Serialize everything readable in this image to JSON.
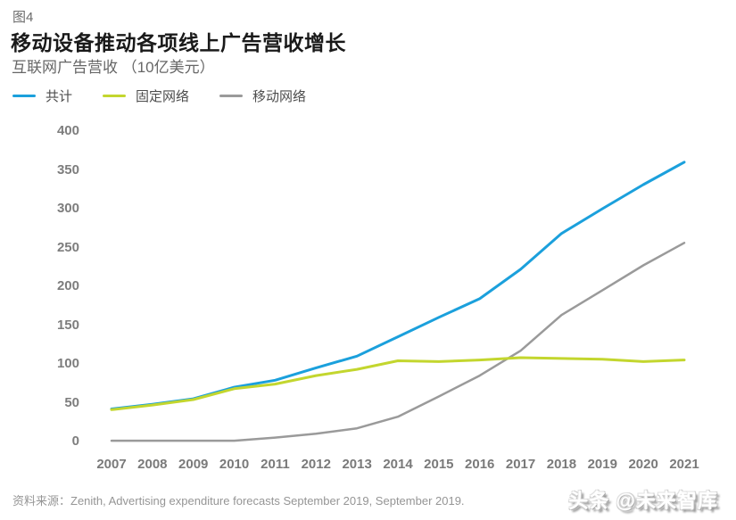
{
  "figure": {
    "tag": "图4",
    "title": "移动设备推动各项线上广告营收增长",
    "subtitle": "互联网广告营收 （10亿美元）",
    "source": "资料来源：Zenith, Advertising expenditure forecasts September 2019, September 2019.",
    "watermark": "头条 @未来智库"
  },
  "chart_data": {
    "type": "line",
    "title": "移动设备推动各项线上广告营收增长",
    "subtitle": "互联网广告营收 （10亿美元）",
    "categories": [
      2007,
      2008,
      2009,
      2010,
      2011,
      2012,
      2013,
      2014,
      2015,
      2016,
      2017,
      2018,
      2019,
      2020,
      2021
    ],
    "series": [
      {
        "id": "total",
        "name": "共计",
        "color": "#1BA0DC",
        "values": [
          42,
          48,
          55,
          70,
          79,
          95,
          110,
          135,
          160,
          184,
          222,
          268,
          300,
          331,
          360
        ]
      },
      {
        "id": "fixed",
        "name": "固定网络",
        "color": "#C3D62E",
        "values": [
          41,
          47,
          54,
          68,
          74,
          85,
          93,
          104,
          103,
          105,
          108,
          107,
          106,
          103,
          105
        ]
      },
      {
        "id": "mobile",
        "name": "移动网络",
        "color": "#9A9A9A",
        "values": [
          1,
          1,
          1,
          1,
          5,
          10,
          17,
          32,
          58,
          85,
          117,
          163,
          195,
          227,
          256
        ]
      }
    ],
    "yticks": [
      0,
      50,
      100,
      150,
      200,
      250,
      300,
      350,
      400
    ],
    "ylim": [
      0,
      400
    ],
    "grid": false,
    "axis_line": false,
    "legend_position": "top-left",
    "tick_color": "#7a7a7a"
  }
}
